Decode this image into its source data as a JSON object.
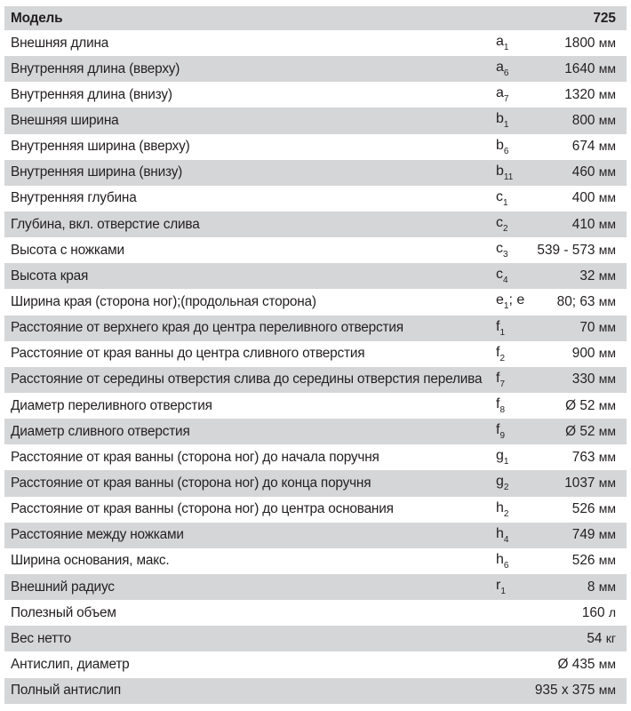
{
  "header": {
    "label": "Модель",
    "value": "725"
  },
  "rows": [
    {
      "label": "Внешняя длина",
      "sym": "a",
      "sub": "1",
      "rest": "",
      "value": "1800",
      "unit": "мм"
    },
    {
      "label": "Внутренняя длина (вверху)",
      "sym": "a",
      "sub": "6",
      "rest": "",
      "value": "1640",
      "unit": "мм"
    },
    {
      "label": "Внутренняя длина (внизу)",
      "sym": "a",
      "sub": "7",
      "rest": "",
      "value": "1320",
      "unit": "мм"
    },
    {
      "label": "Внешняя ширина",
      "sym": "b",
      "sub": "1",
      "rest": "",
      "value": "800",
      "unit": "мм"
    },
    {
      "label": "Внутренняя ширина (вверху)",
      "sym": "b",
      "sub": "6",
      "rest": "",
      "value": "674",
      "unit": "мм"
    },
    {
      "label": "Внутренняя ширина (внизу)",
      "sym": "b",
      "sub": "11",
      "rest": "",
      "value": "460",
      "unit": "мм"
    },
    {
      "label": "Внутренняя глубина",
      "sym": "c",
      "sub": "1",
      "rest": "",
      "value": "400",
      "unit": "мм"
    },
    {
      "label": "Глубина, вкл. отверстие слива",
      "sym": "c",
      "sub": "2",
      "rest": "",
      "value": "410",
      "unit": "мм"
    },
    {
      "label": "Высота с ножками",
      "sym": "c",
      "sub": "3",
      "rest": "",
      "value": "539 - 573",
      "unit": "мм"
    },
    {
      "label": "Высота края",
      "sym": "c",
      "sub": "4",
      "rest": "",
      "value": "32",
      "unit": "мм"
    },
    {
      "label": "Ширина края (сторона ног);(продольная сторона)",
      "sym": "e",
      "sub": "1",
      "rest": "; e",
      "value": "80; 63",
      "unit": "мм"
    },
    {
      "label": "Расстояние от верхнего края до центра переливного отверстия",
      "sym": "f",
      "sub": "1",
      "rest": "",
      "value": "70",
      "unit": "мм"
    },
    {
      "label": "Расстояние от края ванны до центра сливного отверстия",
      "sym": "f",
      "sub": "2",
      "rest": "",
      "value": "900",
      "unit": "мм"
    },
    {
      "label": "Расстояние от середины отверстия слива до середины отверстия перелива",
      "sym": "f",
      "sub": "7",
      "rest": "",
      "value": "330",
      "unit": "мм"
    },
    {
      "label": "Диаметр переливного отверстия",
      "sym": "f",
      "sub": "8",
      "rest": "",
      "value": "Ø 52",
      "unit": "мм"
    },
    {
      "label": "Диаметр сливного отверстия",
      "sym": "f",
      "sub": "9",
      "rest": "",
      "value": "Ø 52",
      "unit": "мм"
    },
    {
      "label": "Расстояние от края ванны (сторона ног) до начала поручня",
      "sym": "g",
      "sub": "1",
      "rest": "",
      "value": "763",
      "unit": "мм"
    },
    {
      "label": "Расстояние от края ванны (сторона ног) до конца поручня",
      "sym": "g",
      "sub": "2",
      "rest": "",
      "value": "1037",
      "unit": "мм"
    },
    {
      "label": "Расстояние от края ванны (сторона ног) до центра основания",
      "sym": "h",
      "sub": "2",
      "rest": "",
      "value": "526",
      "unit": "мм"
    },
    {
      "label": "Расстояние между ножками",
      "sym": "h",
      "sub": "4",
      "rest": "",
      "value": "749",
      "unit": "мм"
    },
    {
      "label": "Ширина основания, макс.",
      "sym": "h",
      "sub": "6",
      "rest": "",
      "value": "526",
      "unit": "мм"
    },
    {
      "label": "Внешний радиус",
      "sym": "r",
      "sub": "1",
      "rest": "",
      "value": "8",
      "unit": "мм"
    },
    {
      "label": "Полезный объем",
      "sym": "",
      "sub": "",
      "rest": "",
      "value": "160",
      "unit": "л"
    },
    {
      "label": "Вес нетто",
      "sym": "",
      "sub": "",
      "rest": "",
      "value": "54",
      "unit": "кг"
    },
    {
      "label": "Антислип, диаметр",
      "sym": "",
      "sub": "",
      "rest": "",
      "value": "Ø 435",
      "unit": "мм"
    },
    {
      "label": "Полный антислип",
      "sym": "",
      "sub": "",
      "rest": "",
      "value": "935 x 375",
      "unit": "мм"
    }
  ],
  "colors": {
    "stripe": "#d5d6d8",
    "text": "#231f20"
  }
}
